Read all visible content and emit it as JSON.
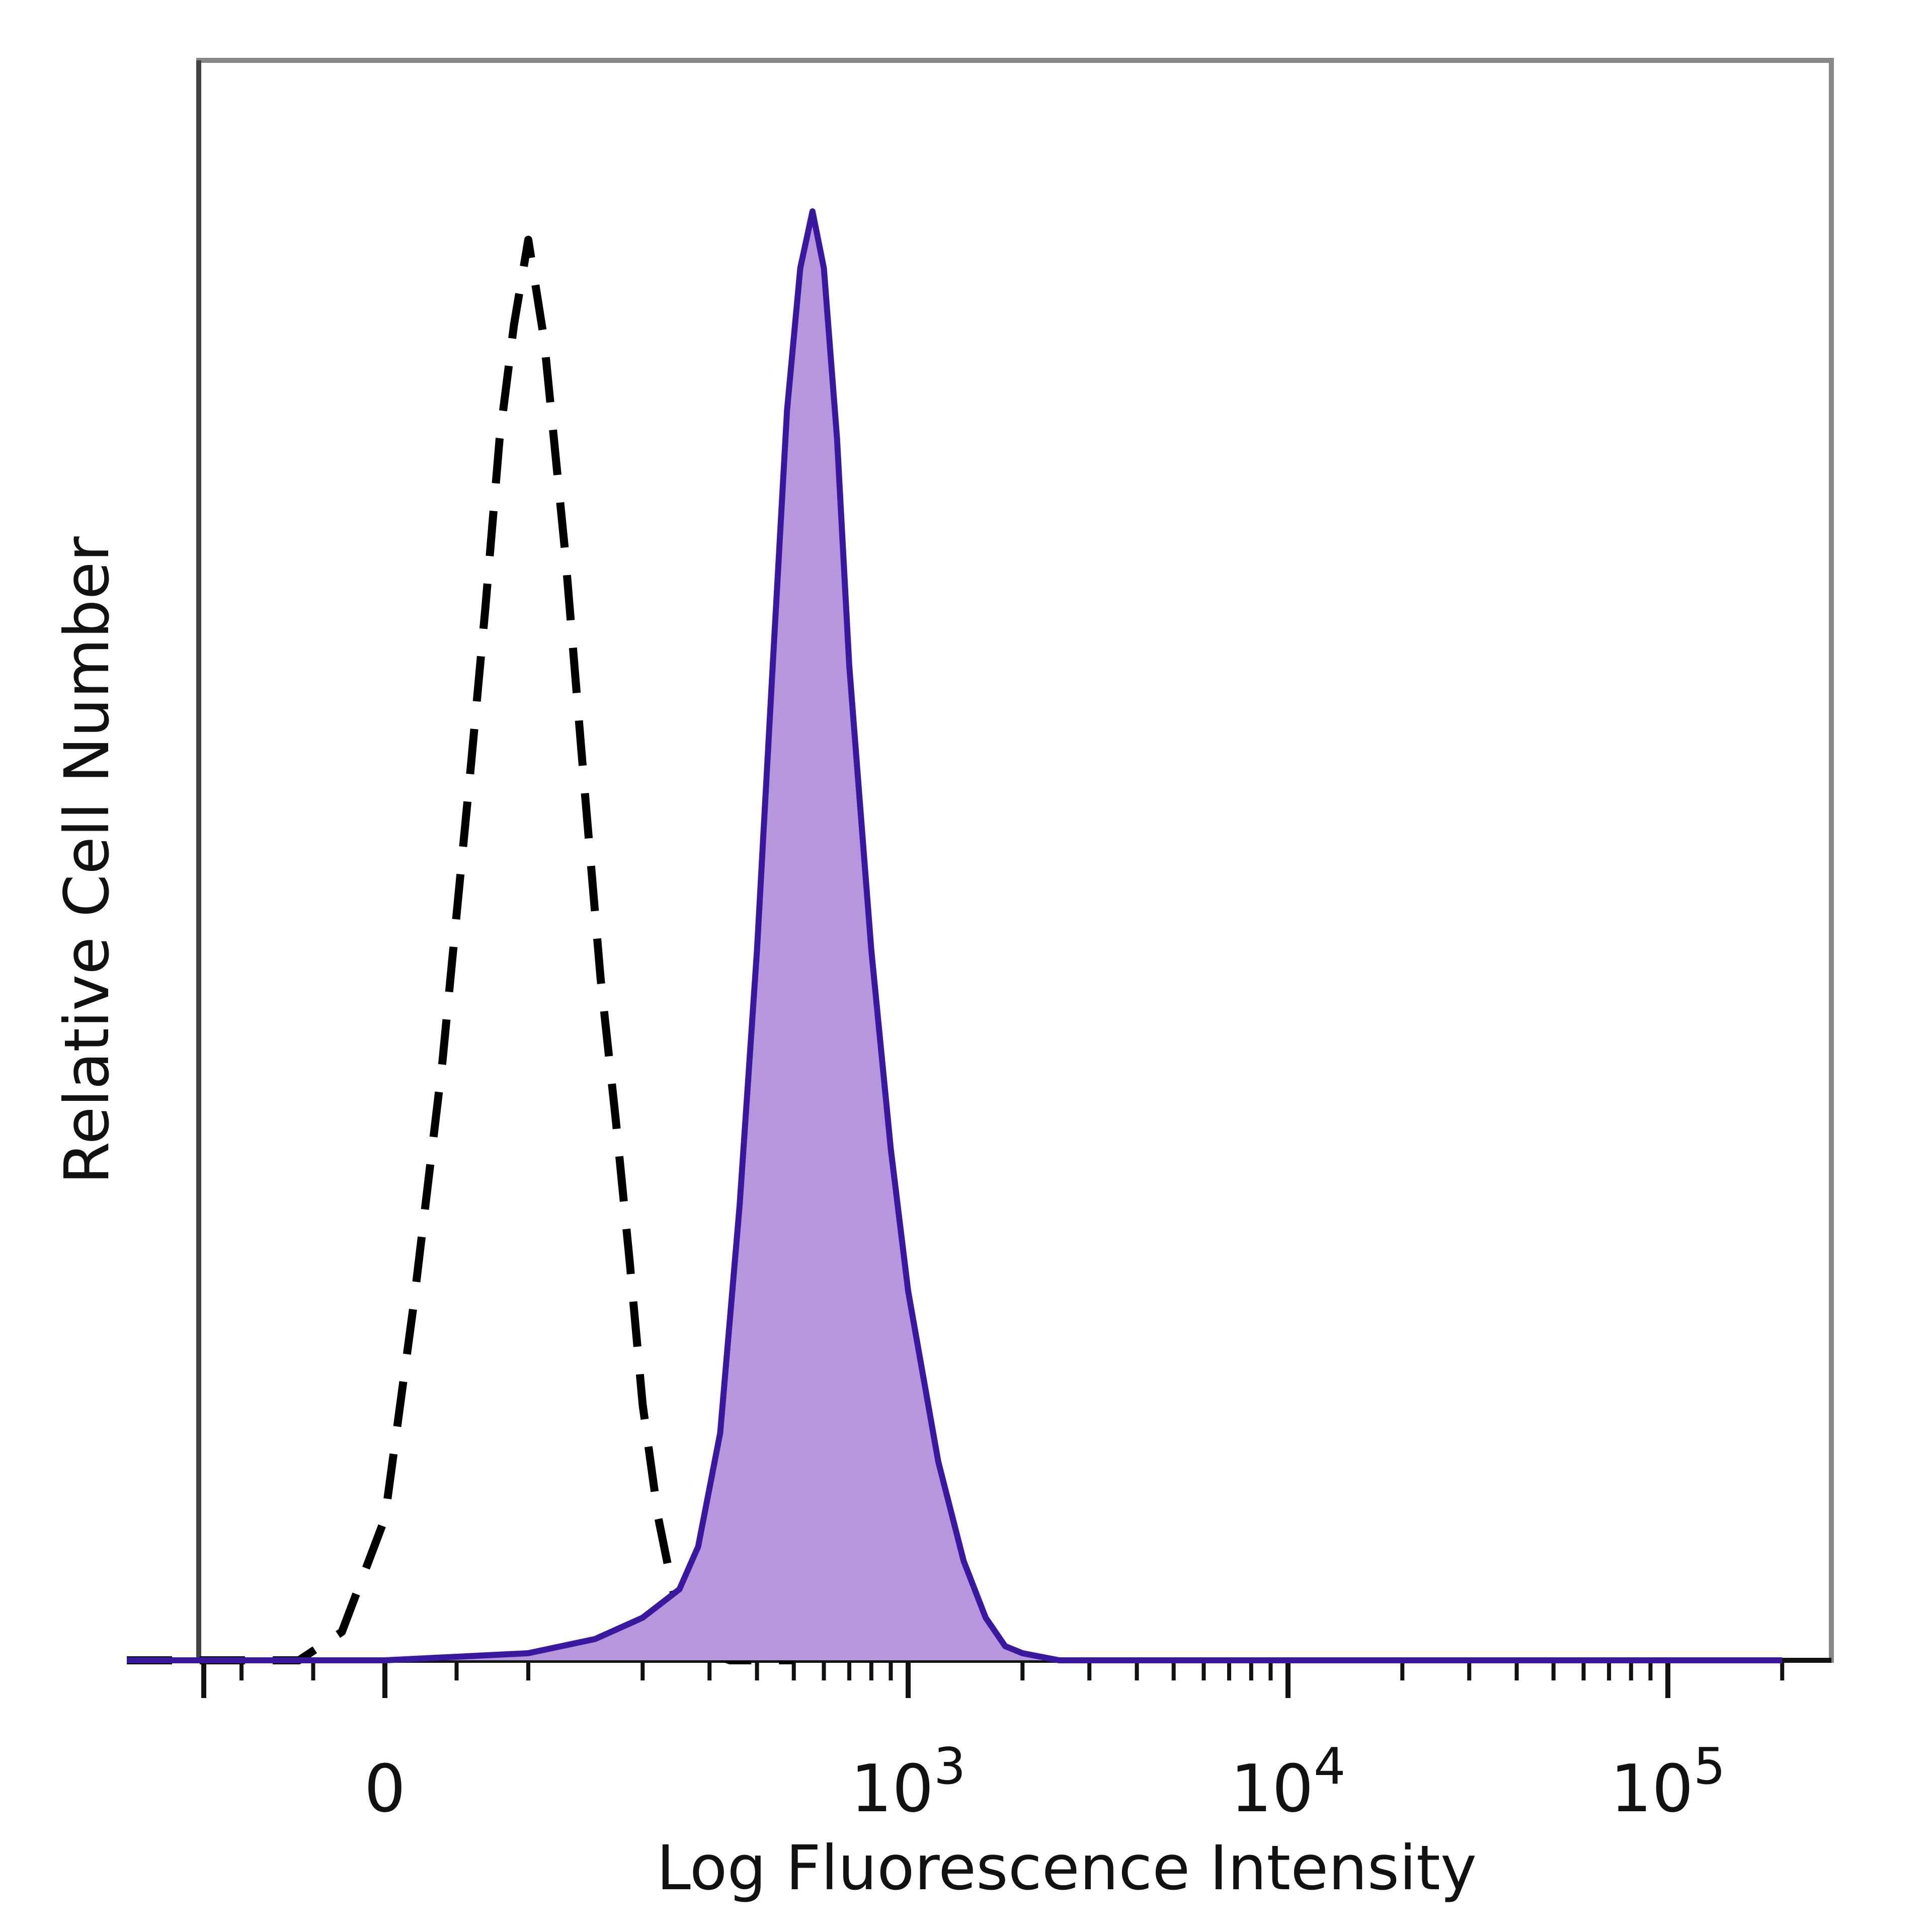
{
  "chart_data": {
    "type": "area",
    "title": "",
    "xlabel": "Log Fluorescence Intensity",
    "ylabel": "Relative Cell Number",
    "x_scale": "biexponential",
    "xlim": [
      -180,
      200000
    ],
    "ylim": [
      0,
      1.1
    ],
    "grid": false,
    "legend": "none",
    "x_ticks": [
      {
        "value": 0,
        "base": "0",
        "exp": ""
      },
      {
        "value": 1000,
        "base": "10",
        "exp": "3"
      },
      {
        "value": 10000,
        "base": "10",
        "exp": "4"
      },
      {
        "value": 100000,
        "base": "10",
        "exp": "5"
      }
    ],
    "series": [
      {
        "style": "dashed",
        "color": "#000000",
        "fill": "none",
        "x": [
          -180,
          -120,
          -60,
          -30,
          0,
          20,
          40,
          60,
          70,
          80,
          90,
          100,
          110,
          125,
          140,
          155,
          170,
          185,
          200,
          220,
          240,
          260,
          300,
          340,
          400,
          500
        ],
        "y": [
          0,
          0,
          0,
          0.02,
          0.1,
          0.25,
          0.42,
          0.63,
          0.74,
          0.86,
          0.94,
          1.0,
          0.93,
          0.78,
          0.62,
          0.48,
          0.38,
          0.28,
          0.18,
          0.1,
          0.05,
          0.02,
          0.005,
          0,
          0,
          0
        ]
      },
      {
        "style": "solid",
        "color": "#3a18a0",
        "fill": "#b697dc",
        "x": [
          -180,
          0,
          100,
          150,
          200,
          250,
          280,
          320,
          360,
          400,
          440,
          480,
          520,
          560,
          600,
          650,
          700,
          800,
          900,
          1000,
          1200,
          1400,
          1600,
          1800,
          2000,
          2500,
          3000,
          10000,
          100000,
          200000
        ],
        "y": [
          0,
          0,
          0.005,
          0.015,
          0.03,
          0.05,
          0.08,
          0.16,
          0.32,
          0.5,
          0.7,
          0.88,
          0.98,
          1.02,
          0.98,
          0.86,
          0.7,
          0.5,
          0.36,
          0.26,
          0.14,
          0.07,
          0.03,
          0.01,
          0.005,
          0,
          0,
          0,
          0,
          0
        ]
      }
    ]
  }
}
